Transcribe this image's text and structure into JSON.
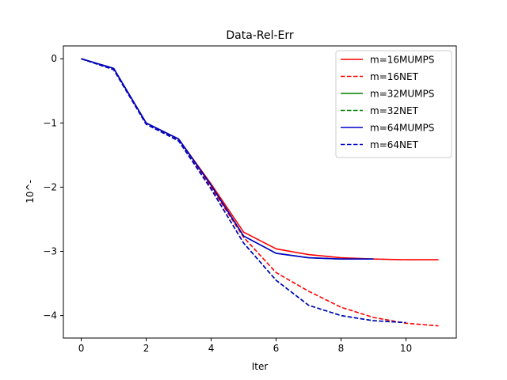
{
  "chart_data": {
    "type": "line",
    "title": "Data-Rel-Err",
    "xlabel": "Iter",
    "ylabel": "10^-",
    "xlim": [
      -0.55,
      11.55
    ],
    "ylim": [
      -4.35,
      0.2
    ],
    "xticks": [
      0,
      2,
      4,
      6,
      8,
      10
    ],
    "xtick_labels": [
      "0",
      "2",
      "4",
      "6",
      "8",
      "10"
    ],
    "yticks": [
      0,
      -1,
      -2,
      -3,
      -4
    ],
    "ytick_labels": [
      "0",
      "−1",
      "−2",
      "−3",
      "−4"
    ],
    "legend_position": "top-right",
    "grid": false,
    "series": [
      {
        "name": "m=16MUMPS",
        "color": "#ff0000",
        "linestyle": "solid",
        "x": [
          0,
          1,
          2,
          3,
          4,
          5,
          6,
          7,
          8,
          9,
          10,
          11
        ],
        "y": [
          0,
          -0.15,
          -1.0,
          -1.25,
          -1.95,
          -2.7,
          -2.96,
          -3.05,
          -3.1,
          -3.12,
          -3.13,
          -3.13
        ]
      },
      {
        "name": "m=16NET",
        "color": "#ff0000",
        "linestyle": "dashed",
        "x": [
          0,
          1,
          2,
          3,
          4,
          5,
          6,
          7,
          8,
          9,
          10,
          11
        ],
        "y": [
          0,
          -0.17,
          -1.02,
          -1.27,
          -2.0,
          -2.78,
          -3.33,
          -3.62,
          -3.87,
          -4.03,
          -4.12,
          -4.16
        ]
      },
      {
        "name": "m=32MUMPS",
        "color": "#008000",
        "linestyle": "solid",
        "x": [
          0,
          1,
          2,
          3,
          4,
          5,
          6,
          7,
          8,
          9
        ],
        "y": [
          0,
          -0.15,
          -1.0,
          -1.25,
          -1.97,
          -2.76,
          -3.03,
          -3.1,
          -3.12,
          -3.12
        ]
      },
      {
        "name": "m=32NET",
        "color": "#008000",
        "linestyle": "dashed",
        "x": [
          0,
          1,
          2,
          3,
          4,
          5,
          6,
          7,
          8,
          9,
          10
        ],
        "y": [
          0,
          -0.17,
          -1.02,
          -1.28,
          -2.03,
          -2.87,
          -3.45,
          -3.84,
          -4.0,
          -4.08,
          -4.11
        ]
      },
      {
        "name": "m=64MUMPS",
        "color": "#0000cc",
        "linestyle": "solid",
        "x": [
          0,
          1,
          2,
          3,
          4,
          5,
          6,
          7,
          8,
          9
        ],
        "y": [
          0,
          -0.15,
          -1.0,
          -1.25,
          -1.97,
          -2.76,
          -3.03,
          -3.1,
          -3.12,
          -3.12
        ]
      },
      {
        "name": "m=64NET",
        "color": "#0000cc",
        "linestyle": "dashed",
        "x": [
          0,
          1,
          2,
          3,
          4,
          5,
          6,
          7,
          8,
          9,
          10
        ],
        "y": [
          0,
          -0.17,
          -1.02,
          -1.28,
          -2.03,
          -2.87,
          -3.45,
          -3.84,
          -4.0,
          -4.08,
          -4.11
        ]
      }
    ]
  }
}
